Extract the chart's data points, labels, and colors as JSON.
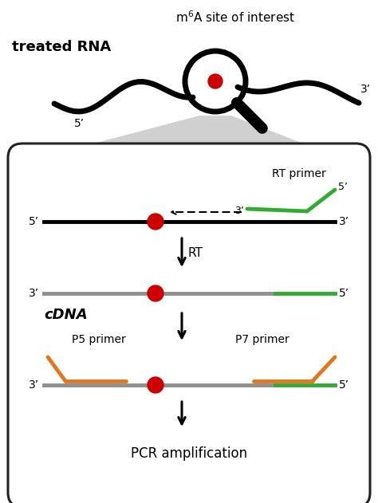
{
  "bg_color": "#ffffff",
  "title_text": "m⁶A site of interest",
  "treated_rna_text": "treated RNA",
  "cdna_text": "cDNA",
  "rt_text": "RT",
  "pcr_text": "PCR amplification",
  "rt_primer_text": "RT primer",
  "p5_primer_text": "P5 primer",
  "p7_primer_text": "P7 primer",
  "five_prime": "5’",
  "three_prime": "3’",
  "red_dot_color": "#cc0000",
  "green_color": "#33aa33",
  "orange_color": "#e07820",
  "gray_color": "#909090",
  "black_color": "#000000",
  "box_bg": "#ffffff",
  "box_edge": "#222222",
  "gray_trap": "#c8c8c8"
}
